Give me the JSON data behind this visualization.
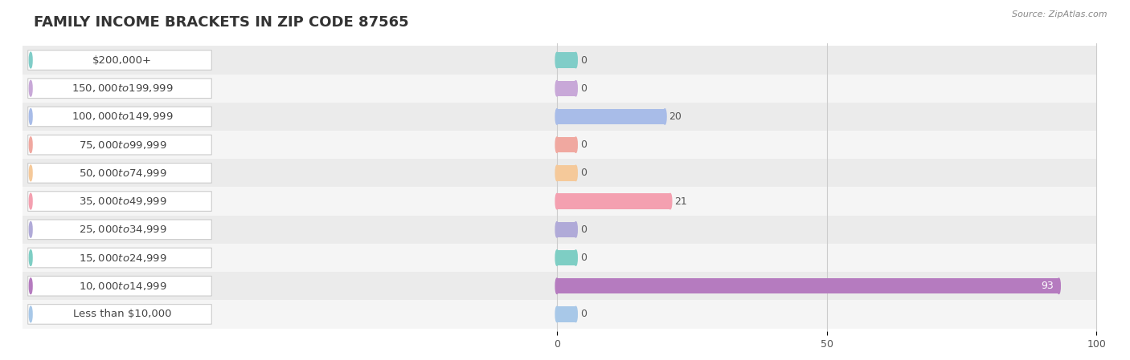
{
  "title": "FAMILY INCOME BRACKETS IN ZIP CODE 87565",
  "source": "Source: ZipAtlas.com",
  "categories": [
    "Less than $10,000",
    "$10,000 to $14,999",
    "$15,000 to $24,999",
    "$25,000 to $34,999",
    "$35,000 to $49,999",
    "$50,000 to $74,999",
    "$75,000 to $99,999",
    "$100,000 to $149,999",
    "$150,000 to $199,999",
    "$200,000+"
  ],
  "values": [
    0,
    93,
    0,
    0,
    21,
    0,
    0,
    20,
    0,
    0
  ],
  "bar_colors": [
    "#a8c8e8",
    "#b57bbf",
    "#7ecec4",
    "#b0aad8",
    "#f4a0b0",
    "#f5c99a",
    "#f0a8a0",
    "#a8bce8",
    "#c8a8d8",
    "#80cdc8"
  ],
  "label_colors": [
    "#6699bb",
    "#9955aa",
    "#55aaaa",
    "#8888cc",
    "#ee7799",
    "#ddaa66",
    "#dd8888",
    "#7799cc",
    "#aa88bb",
    "#55aaaa"
  ],
  "bg_row_colors": [
    "#f5f5f5",
    "#ebebeb"
  ],
  "xlim_max": 100,
  "xticks": [
    0,
    50,
    100
  ],
  "figsize": [
    14.06,
    4.49
  ],
  "dpi": 100,
  "bar_height": 0.55,
  "label_fontsize": 9.5,
  "value_fontsize": 9,
  "title_fontsize": 13,
  "background_color": "#ffffff"
}
